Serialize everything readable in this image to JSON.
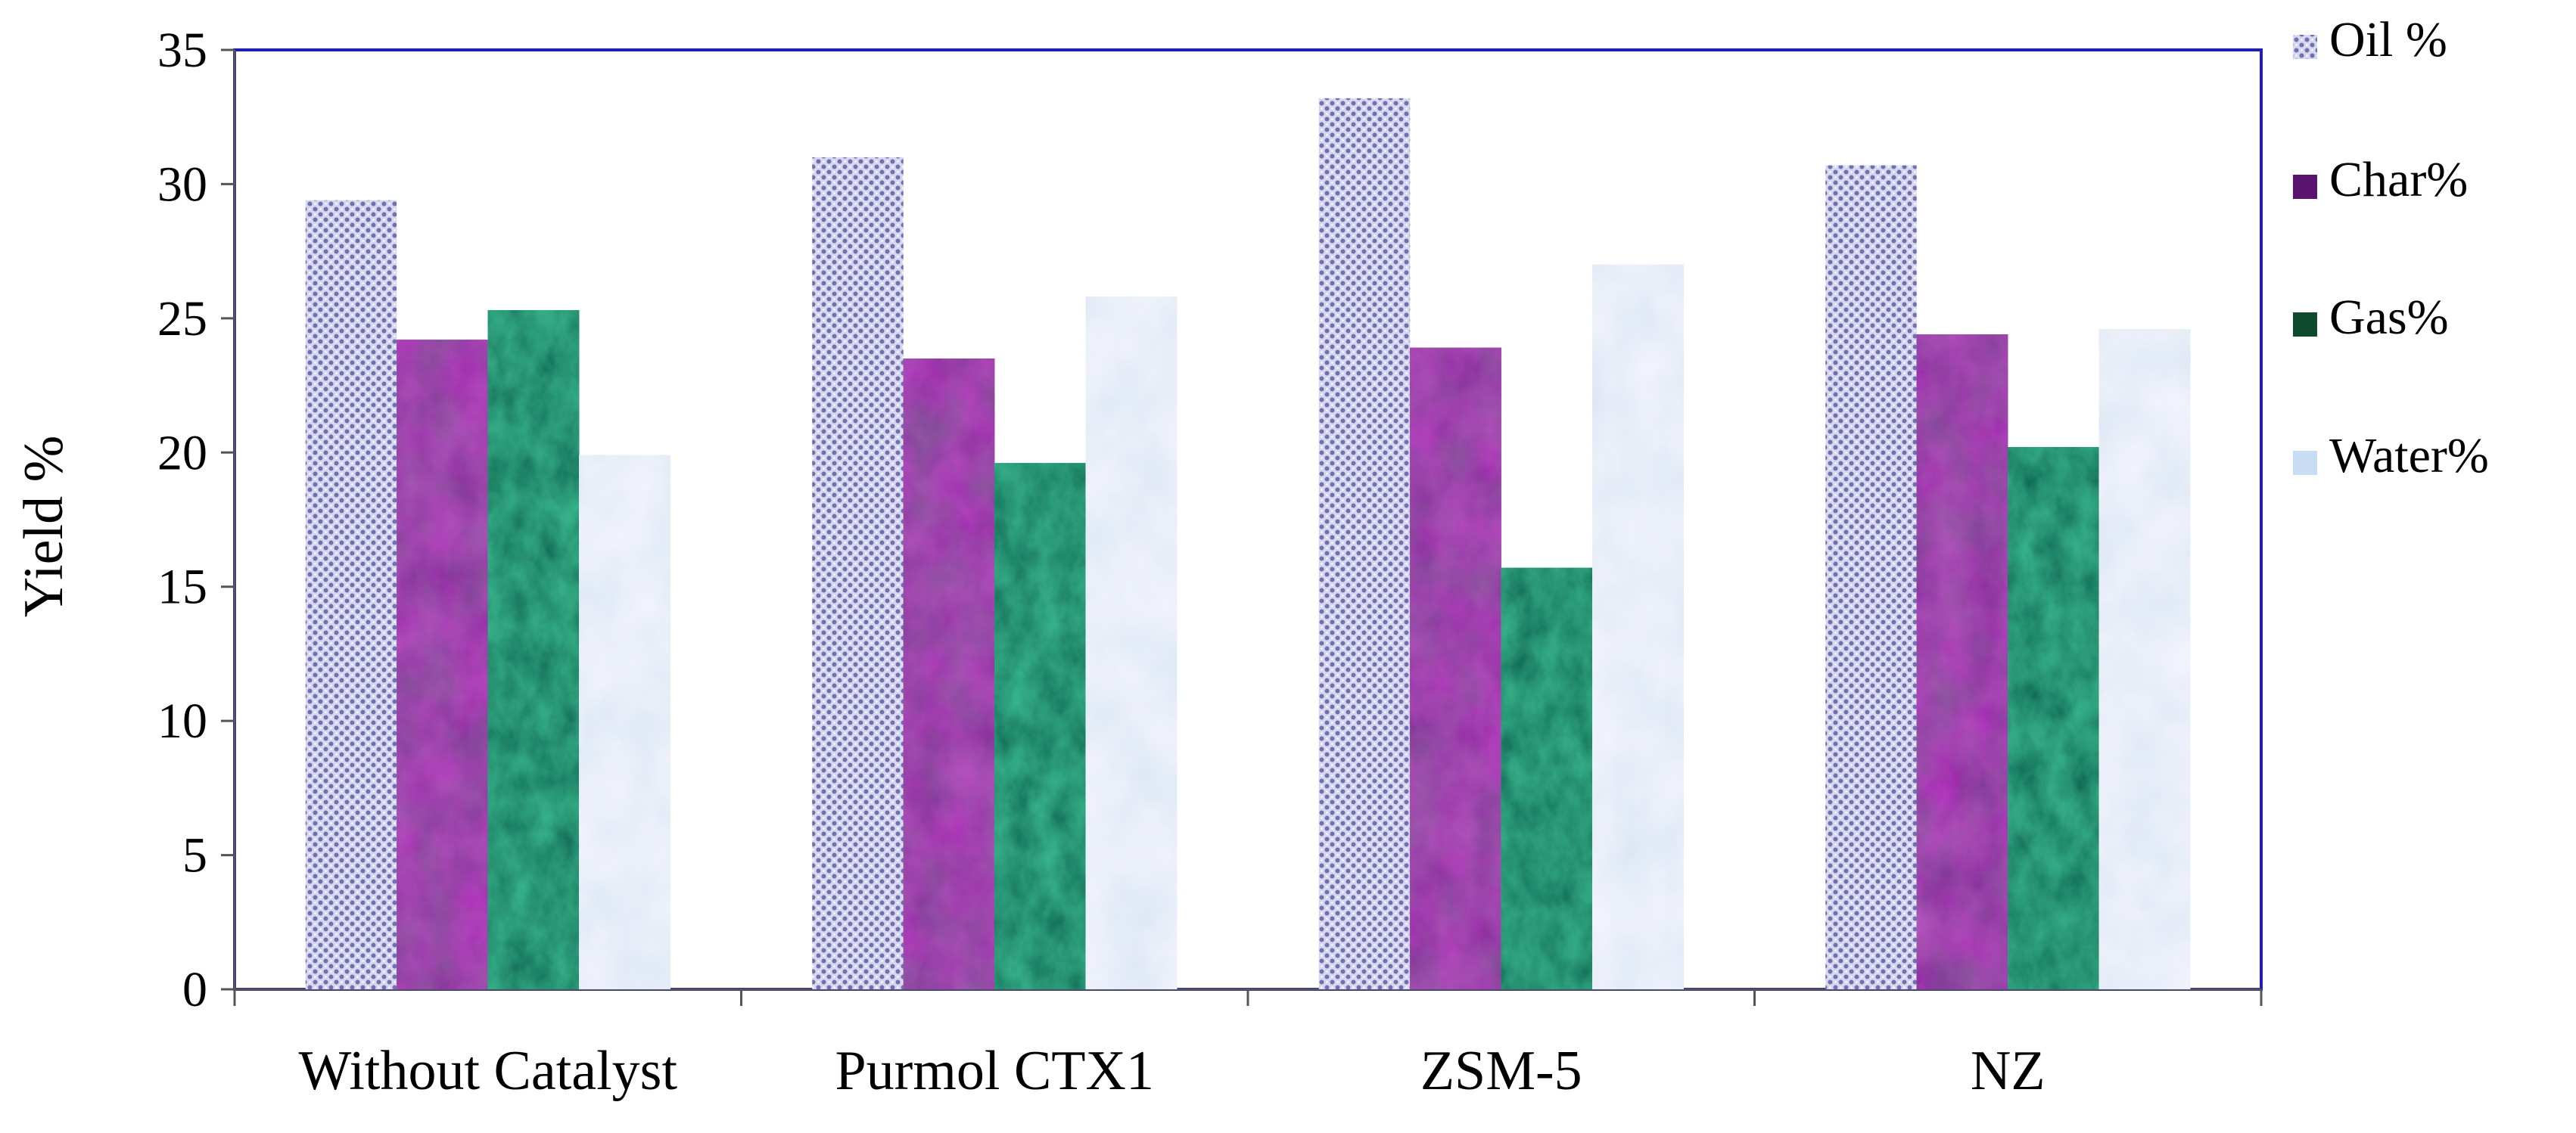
{
  "chart_data": {
    "type": "bar",
    "title": "",
    "xlabel": "",
    "ylabel": "Yield %",
    "categories": [
      "Without Catalyst",
      "Purmol CTX1",
      "ZSM-5",
      "NZ"
    ],
    "series": [
      {
        "name": "Oil %",
        "values": [
          29.4,
          31.0,
          33.2,
          30.7
        ],
        "color": "#c7c8e3",
        "pattern": "checker-lavender"
      },
      {
        "name": "Char%",
        "values": [
          24.2,
          23.5,
          23.9,
          24.4
        ],
        "color": "#5a1470",
        "pattern": "marble-purple"
      },
      {
        "name": "Gas%",
        "values": [
          25.3,
          19.6,
          15.7,
          20.2
        ],
        "color": "#0e4a2e",
        "pattern": "marble-green"
      },
      {
        "name": "Water%",
        "values": [
          19.9,
          25.8,
          27.0,
          24.6
        ],
        "color": "#c8ddf3",
        "pattern": "marble-lightblue"
      }
    ],
    "ylim": [
      0,
      35
    ],
    "yticks": [
      0,
      5,
      10,
      15,
      20,
      25,
      30,
      35
    ],
    "grid": false,
    "legend_position": "right",
    "plot_border_color": "#1f1fb4"
  }
}
